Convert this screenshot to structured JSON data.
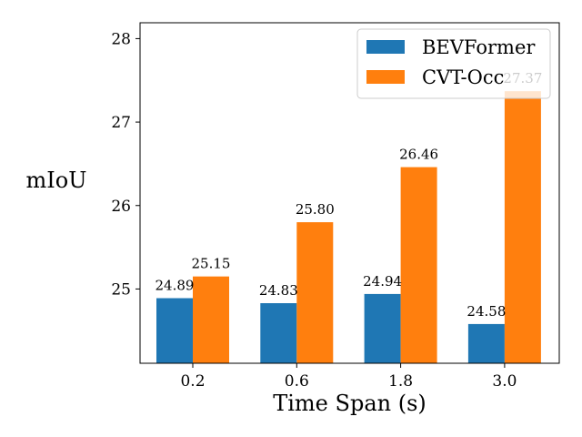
{
  "chart_data": {
    "type": "bar",
    "categories": [
      "0.2",
      "0.6",
      "1.8",
      "3.0"
    ],
    "series": [
      {
        "name": "BEVFormer",
        "values": [
          24.89,
          24.83,
          24.94,
          24.58
        ],
        "labels": [
          "24.89",
          "24.83",
          "24.94",
          "24.58"
        ],
        "color": "#1f77b4"
      },
      {
        "name": "CVT-Occ",
        "values": [
          25.15,
          25.8,
          26.46,
          27.37
        ],
        "labels": [
          "25.15",
          "25.80",
          "26.46",
          "27.37"
        ],
        "color": "#ff7f0e"
      }
    ],
    "xlabel": "Time Span (s)",
    "ylabel": "mIoU",
    "ylim": [
      24.11,
      28.19
    ],
    "yticks": [
      25,
      26,
      27,
      28
    ],
    "legend": "top-right",
    "grid": false
  }
}
